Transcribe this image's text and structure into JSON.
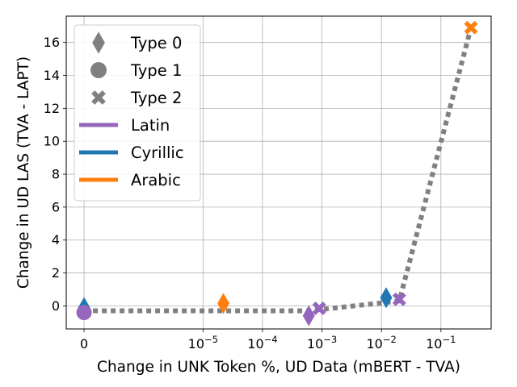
{
  "chart_data": {
    "type": "scatter",
    "xlabel": "Change in UNK Token %, UD Data (mBERT - TVA)",
    "ylabel": "Change in UD LAS (TVA - LAPT)",
    "xscale": "symlog",
    "xlim": [
      -3e-07,
      0.7
    ],
    "ylim": [
      -1.4,
      17.6
    ],
    "x_ticks": [
      {
        "value": 0,
        "label": "0",
        "base": "0",
        "exp": ""
      },
      {
        "value": 1e-05,
        "label": "10^-5",
        "base": "10",
        "exp": "−5"
      },
      {
        "value": 0.0001,
        "label": "10^-4",
        "base": "10",
        "exp": "−4"
      },
      {
        "value": 0.001,
        "label": "10^-3",
        "base": "10",
        "exp": "−3"
      },
      {
        "value": 0.01,
        "label": "10^-2",
        "base": "10",
        "exp": "−2"
      },
      {
        "value": 0.1,
        "label": "10^-1",
        "base": "10",
        "exp": "−1"
      }
    ],
    "y_ticks": [
      0,
      2,
      4,
      6,
      8,
      10,
      12,
      14,
      16
    ],
    "grid": true,
    "legend_position": "top-left",
    "legend": [
      {
        "label": "Type 0",
        "kind": "marker",
        "marker": "diamond",
        "color": "#808080"
      },
      {
        "label": "Type 1",
        "kind": "marker",
        "marker": "circle",
        "color": "#808080"
      },
      {
        "label": "Type 2",
        "kind": "marker",
        "marker": "x",
        "color": "#808080"
      },
      {
        "label": "Latin",
        "kind": "line",
        "color": "#9467bd"
      },
      {
        "label": "Cyrillic",
        "kind": "line",
        "color": "#1f77b4"
      },
      {
        "label": "Arabic",
        "kind": "line",
        "color": "#ff7f0e"
      }
    ],
    "points": [
      {
        "x": 0,
        "y": -0.1,
        "marker": "diamond",
        "script": "Cyrillic",
        "color": "#1f77b4"
      },
      {
        "x": 0,
        "y": -0.4,
        "marker": "circle",
        "script": "Latin",
        "color": "#9467bd"
      },
      {
        "x": 2.2e-05,
        "y": 0.15,
        "marker": "diamond",
        "script": "Arabic",
        "color": "#ff7f0e"
      },
      {
        "x": 0.0006,
        "y": -0.6,
        "marker": "diamond",
        "script": "Latin",
        "color": "#9467bd"
      },
      {
        "x": 0.0009,
        "y": -0.15,
        "marker": "x",
        "script": "Latin",
        "color": "#9467bd"
      },
      {
        "x": 0.012,
        "y": 0.5,
        "marker": "diamond",
        "script": "Cyrillic",
        "color": "#1f77b4"
      },
      {
        "x": 0.02,
        "y": 0.4,
        "marker": "x",
        "script": "Latin",
        "color": "#9467bd"
      },
      {
        "x": 0.32,
        "y": 16.9,
        "marker": "x",
        "script": "Arabic",
        "color": "#ff7f0e"
      }
    ],
    "trend_line": {
      "color": "#808080",
      "style": "dotted",
      "points": [
        {
          "x": 0,
          "y": -0.3
        },
        {
          "x": 0.0006,
          "y": -0.3
        },
        {
          "x": 0.02,
          "y": 0.3
        },
        {
          "x": 0.32,
          "y": 16.9
        }
      ]
    }
  }
}
